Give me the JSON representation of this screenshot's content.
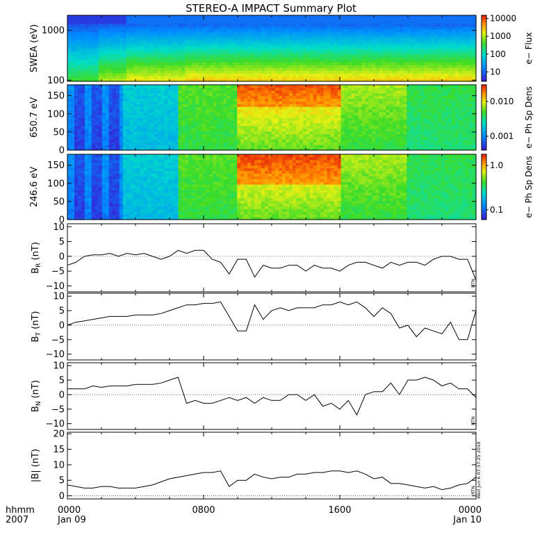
{
  "title": "STEREO-A IMPACT Summary Plot",
  "x_axis": {
    "row1_label": "hhmm",
    "row2_label": "2007",
    "ticks": [
      {
        "t": 0,
        "time": "0000",
        "date": "Jan 09"
      },
      {
        "t": 8,
        "time": "0800",
        "date": ""
      },
      {
        "t": 16,
        "time": "1600",
        "date": ""
      },
      {
        "t": 24,
        "time": "0000",
        "date": "Jan 10"
      }
    ]
  },
  "side_stamp": "Wed Jun  6 07:57:25 2010",
  "chart_data": [
    {
      "type": "heatmap",
      "id": "swea",
      "ylabel": "SWEA (eV)",
      "yscale": "log",
      "ylim": [
        95,
        2000
      ],
      "yticks": [
        100,
        1000
      ],
      "ytick_labels": [
        "100",
        "1000"
      ],
      "colorbar": {
        "label": "e− Flux",
        "scale": "log",
        "range": [
          3,
          15000
        ],
        "ticks": [
          10,
          100,
          1000,
          10000
        ],
        "tick_labels": [
          "10",
          "100",
          "1000",
          "10000"
        ]
      }
    },
    {
      "type": "heatmap",
      "id": "pad650",
      "ylabel": "650.7 eV",
      "ylim": [
        0,
        180
      ],
      "yticks": [
        0,
        50,
        100,
        150
      ],
      "ytick_labels": [
        "0",
        "50",
        "100",
        "150"
      ],
      "colorbar": {
        "label": "e− Ph Sp Dens",
        "scale": "log",
        "range": [
          0.0004,
          0.03
        ],
        "ticks": [
          0.001,
          0.01
        ],
        "tick_labels": [
          "0.001",
          "0.010"
        ]
      }
    },
    {
      "type": "heatmap",
      "id": "pad246",
      "ylabel": "246.6 eV",
      "ylim": [
        0,
        180
      ],
      "yticks": [
        0,
        50,
        100,
        150
      ],
      "ytick_labels": [
        "0",
        "50",
        "100",
        "150"
      ],
      "colorbar": {
        "label": "e− Ph Sp Dens",
        "scale": "log",
        "range": [
          0.06,
          1.8
        ],
        "ticks": [
          0.1,
          1.0
        ],
        "tick_labels": [
          "0.1",
          "1.0"
        ]
      }
    },
    {
      "type": "line",
      "id": "br",
      "ylabel_main": "B",
      "ylabel_sub": "R",
      "ylabel_unit": " (nT)",
      "ylim": [
        -12,
        11
      ],
      "yticks": [
        -10,
        -5,
        0,
        5,
        10
      ],
      "ytick_labels": [
        "−10",
        "−5",
        "0",
        "5",
        "10"
      ],
      "corner_label": "RTN",
      "x": [
        0,
        0.5,
        1,
        1.5,
        2,
        2.5,
        3,
        3.5,
        4,
        4.5,
        5,
        5.5,
        6,
        6.5,
        7,
        7.5,
        8,
        8.5,
        9,
        9.5,
        10,
        10.5,
        11,
        11.5,
        12,
        12.5,
        13,
        13.5,
        14,
        14.5,
        15,
        15.5,
        16,
        16.5,
        17,
        17.5,
        18,
        18.5,
        19,
        19.5,
        20,
        20.5,
        21,
        21.5,
        22,
        22.5,
        23,
        23.5,
        24
      ],
      "y": [
        -3,
        -2,
        0,
        0.5,
        0.5,
        1,
        0,
        1,
        0.5,
        1,
        0,
        -1,
        0,
        2,
        1,
        2,
        2,
        -1,
        -2,
        -6,
        -1,
        -1,
        -7,
        -3,
        -4,
        -4,
        -3,
        -3,
        -5,
        -3,
        -4,
        -4,
        -5,
        -3,
        -2,
        -2,
        -3,
        -4,
        -2,
        -3,
        -2,
        -2,
        -3,
        -1,
        0,
        0,
        -1,
        -1,
        -8
      ]
    },
    {
      "type": "line",
      "id": "bt",
      "ylabel_main": "B",
      "ylabel_sub": "T",
      "ylabel_unit": " (nT)",
      "ylim": [
        -12,
        11
      ],
      "yticks": [
        -10,
        -5,
        0,
        5,
        10
      ],
      "ytick_labels": [
        "−10",
        "−5",
        "0",
        "5",
        "10"
      ],
      "x": [
        0,
        0.5,
        1,
        1.5,
        2,
        2.5,
        3,
        3.5,
        4,
        4.5,
        5,
        5.5,
        6,
        6.5,
        7,
        7.5,
        8,
        8.5,
        9,
        9.5,
        10,
        10.5,
        11,
        11.5,
        12,
        12.5,
        13,
        13.5,
        14,
        14.5,
        15,
        15.5,
        16,
        16.5,
        17,
        17.5,
        18,
        18.5,
        19,
        19.5,
        20,
        20.5,
        21,
        21.5,
        22,
        22.5,
        23,
        23.5,
        24
      ],
      "y": [
        0,
        1,
        1.5,
        2,
        2.5,
        3,
        3,
        3,
        3.5,
        3.5,
        3.5,
        4,
        5,
        6,
        7,
        7,
        7.5,
        7.5,
        8,
        3,
        -2,
        -2,
        7,
        2,
        5,
        6,
        5,
        6,
        6,
        6,
        7,
        7,
        8,
        7,
        8,
        6,
        3,
        6,
        4,
        -1,
        0,
        -4,
        -1,
        -2,
        -3,
        1,
        -5,
        -5,
        5
      ]
    },
    {
      "type": "line",
      "id": "bn",
      "ylabel_main": "B",
      "ylabel_sub": "N",
      "ylabel_unit": " (nT)",
      "ylim": [
        -12,
        11
      ],
      "yticks": [
        -10,
        -5,
        0,
        5,
        10
      ],
      "ytick_labels": [
        "−10",
        "−5",
        "0",
        "5",
        "10"
      ],
      "corner_label": "RTN",
      "x": [
        0,
        0.5,
        1,
        1.5,
        2,
        2.5,
        3,
        3.5,
        4,
        4.5,
        5,
        5.5,
        6,
        6.5,
        7,
        7.5,
        8,
        8.5,
        9,
        9.5,
        10,
        10.5,
        11,
        11.5,
        12,
        12.5,
        13,
        13.5,
        14,
        14.5,
        15,
        15.5,
        16,
        16.5,
        17,
        17.5,
        18,
        18.5,
        19,
        19.5,
        20,
        20.5,
        21,
        21.5,
        22,
        22.5,
        23,
        23.5,
        24
      ],
      "y": [
        2,
        2,
        2,
        3,
        2.5,
        3,
        3,
        3,
        3.5,
        3.5,
        3.5,
        4,
        5,
        6,
        -3,
        -2,
        -3,
        -3,
        -2,
        -1,
        -2,
        -1,
        -3,
        -1,
        -2,
        -2,
        0,
        0,
        -2,
        0,
        -4,
        -3,
        -5,
        -2,
        -7,
        0,
        1,
        1,
        4,
        0,
        5,
        5,
        6,
        5,
        3,
        4,
        2,
        2,
        -1
      ]
    },
    {
      "type": "line",
      "id": "bmag",
      "ylabel_main": "|B|",
      "ylabel_sub": "",
      "ylabel_unit": " (nT)",
      "ylim": [
        -1,
        20.5
      ],
      "yticks": [
        0,
        5,
        10,
        15,
        20
      ],
      "ytick_labels": [
        "0",
        "5",
        "10",
        "15",
        "20"
      ],
      "corner_label": "RTN",
      "x": [
        0,
        0.5,
        1,
        1.5,
        2,
        2.5,
        3,
        3.5,
        4,
        4.5,
        5,
        5.5,
        6,
        6.5,
        7,
        7.5,
        8,
        8.5,
        9,
        9.5,
        10,
        10.5,
        11,
        11.5,
        12,
        12.5,
        13,
        13.5,
        14,
        14.5,
        15,
        15.5,
        16,
        16.5,
        17,
        17.5,
        18,
        18.5,
        19,
        19.5,
        20,
        20.5,
        21,
        21.5,
        22,
        22.5,
        23,
        23.5,
        24
      ],
      "y": [
        3.5,
        3,
        2.5,
        2.5,
        3,
        3,
        2.5,
        2.5,
        2.5,
        3,
        3.5,
        4.5,
        5.5,
        6,
        6.5,
        7,
        7.5,
        7.5,
        8,
        3,
        5,
        5,
        7,
        6,
        5.5,
        6,
        6,
        7,
        7,
        7.5,
        7.5,
        8,
        8,
        7.5,
        8,
        7,
        5.5,
        6,
        4,
        4,
        3.5,
        3,
        2.5,
        3,
        2,
        2.5,
        3.5,
        4,
        6
      ]
    }
  ]
}
